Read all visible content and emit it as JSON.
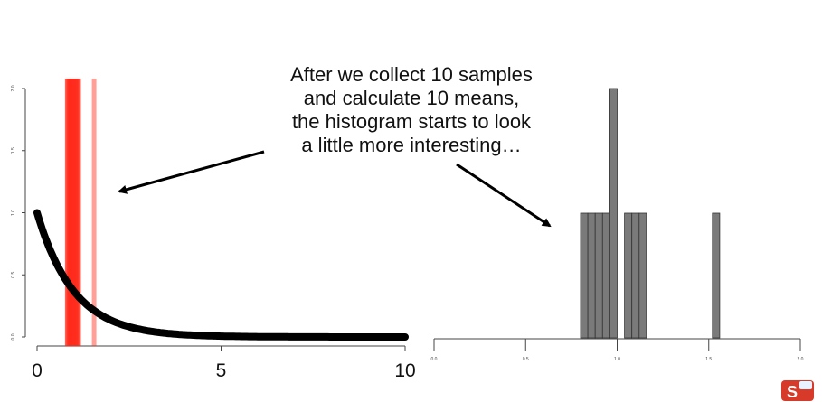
{
  "caption": {
    "lines": [
      "After we collect 10 samples",
      "and calculate 10 means,",
      "the histogram starts to look",
      "a little more interesting…"
    ]
  },
  "logo": {
    "text": "S"
  },
  "colors": {
    "sample_lines": "#ff2a1a",
    "curve": "#000000",
    "bars": "#7a7a7a"
  },
  "chart_data": [
    {
      "type": "line",
      "description_role": "exponential distribution with sample mean markers",
      "x_ticks": [
        "0",
        "5",
        "10"
      ],
      "y_ticks": [
        "0.0",
        "0.5",
        "1.0",
        "1.5",
        "2.0"
      ],
      "xlim": [
        0,
        10
      ],
      "ylim": [
        0,
        2
      ],
      "curve": {
        "function": "exp(-x)",
        "x_range": [
          0,
          10
        ]
      },
      "sample_means": [
        0.82,
        0.86,
        0.9,
        0.93,
        0.96,
        1.0,
        1.04,
        1.08,
        1.13,
        1.55
      ]
    },
    {
      "type": "bar",
      "description_role": "histogram of sample means",
      "x_ticks": [
        "0.0",
        "0.5",
        "1.0",
        "1.5",
        "2.0"
      ],
      "xlim": [
        0,
        2
      ],
      "ylim": [
        0,
        2
      ],
      "bin_width": 0.04,
      "bins": [
        {
          "x0": 0.8,
          "count": 1
        },
        {
          "x0": 0.84,
          "count": 1
        },
        {
          "x0": 0.88,
          "count": 1
        },
        {
          "x0": 0.92,
          "count": 1
        },
        {
          "x0": 0.96,
          "count": 2
        },
        {
          "x0": 1.04,
          "count": 1
        },
        {
          "x0": 1.08,
          "count": 1
        },
        {
          "x0": 1.12,
          "count": 1
        },
        {
          "x0": 1.52,
          "count": 1
        }
      ]
    }
  ]
}
